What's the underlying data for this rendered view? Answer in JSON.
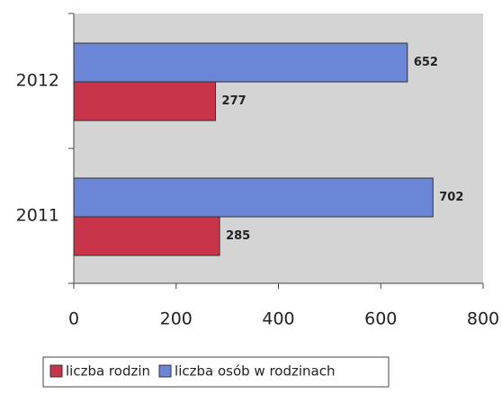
{
  "chart_data": {
    "type": "hbar",
    "categories": [
      "2012",
      "2011"
    ],
    "series": [
      {
        "name": "liczba rodzin",
        "color": "#c8344a",
        "values": [
          277,
          285
        ]
      },
      {
        "name": "liczba osób w rodzinach",
        "color": "#6b86d6",
        "values": [
          652,
          702
        ]
      }
    ],
    "xlim": [
      0,
      800
    ],
    "xticks": [
      0,
      200,
      400,
      600,
      800
    ],
    "grid": false,
    "legend": "bottom"
  }
}
